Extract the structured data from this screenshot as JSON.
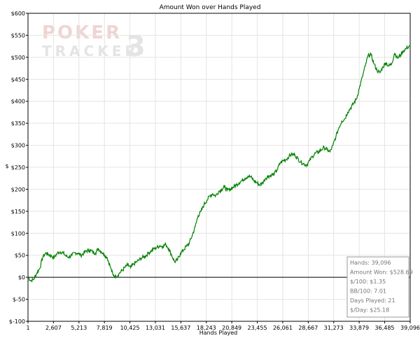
{
  "chart_data": {
    "type": "line",
    "title": "Amount Won over Hands Played",
    "xlabel": "Hands Played",
    "ylabel": "$",
    "xlim": [
      1,
      39096
    ],
    "ylim": [
      -100,
      600
    ],
    "x_ticks": [
      "1",
      "2,607",
      "5,213",
      "7,819",
      "10,425",
      "13,031",
      "15,637",
      "18,243",
      "20,849",
      "23,455",
      "26,061",
      "28,667",
      "31,273",
      "33,879",
      "36,485",
      "39,096"
    ],
    "y_ticks": [
      "$600",
      "$550",
      "$500",
      "$450",
      "$400",
      "$350",
      "$300",
      "$250",
      "$200",
      "$150",
      "$100",
      "$50",
      "$0",
      "$-50",
      "$-100"
    ],
    "grid": true,
    "line_color": "#008000",
    "series": [
      {
        "x": [
          1,
          300,
          600,
          900,
          1200,
          1500,
          1800,
          2100,
          2400,
          2700,
          3000,
          3300,
          3600,
          3900,
          4200,
          4500,
          4800,
          5100,
          5400,
          5700,
          6000,
          6300,
          6600,
          6900,
          7200,
          7500,
          7800,
          8100,
          8400,
          8700,
          9000,
          9300,
          9600,
          9900,
          10200,
          10500,
          10800,
          11100,
          11400,
          11700,
          12000,
          12300,
          12600,
          12900,
          13200,
          13500,
          13800,
          14100,
          14400,
          14700,
          15000,
          15300,
          15600,
          15900,
          16200,
          16500,
          16800,
          17100,
          17400,
          17700,
          18000,
          18300,
          18600,
          18900,
          19200,
          19500,
          19800,
          20100,
          20400,
          20700,
          21000,
          21300,
          21600,
          21900,
          22200,
          22500,
          22800,
          23100,
          23400,
          23700,
          24000,
          24300,
          24600,
          24900,
          25200,
          25500,
          25800,
          26100,
          26400,
          26700,
          27000,
          27300,
          27600,
          27900,
          28200,
          28500,
          28800,
          29100,
          29400,
          29700,
          30000,
          30300,
          30600,
          30900,
          31200,
          31500,
          31800,
          32100,
          32400,
          32700,
          33000,
          33300,
          33600,
          33900,
          34200,
          34500,
          34800,
          35100,
          35400,
          35700,
          36000,
          36300,
          36600,
          36900,
          37200,
          37500,
          37800,
          38100,
          38400,
          38700,
          39096
        ],
        "y": [
          0,
          -8,
          -4,
          10,
          20,
          45,
          55,
          52,
          48,
          45,
          55,
          58,
          55,
          48,
          46,
          50,
          56,
          55,
          50,
          55,
          60,
          62,
          58,
          55,
          65,
          58,
          52,
          45,
          25,
          5,
          2,
          8,
          15,
          22,
          28,
          22,
          30,
          35,
          40,
          45,
          48,
          55,
          60,
          65,
          68,
          72,
          70,
          75,
          65,
          50,
          35,
          40,
          55,
          62,
          70,
          78,
          95,
          115,
          140,
          150,
          165,
          175,
          185,
          190,
          185,
          195,
          200,
          205,
          198,
          200,
          205,
          210,
          215,
          220,
          225,
          230,
          228,
          220,
          215,
          210,
          215,
          225,
          230,
          232,
          235,
          245,
          260,
          265,
          268,
          275,
          280,
          278,
          270,
          262,
          258,
          255,
          265,
          275,
          282,
          285,
          290,
          295,
          290,
          285,
          300,
          320,
          340,
          355,
          360,
          375,
          385,
          395,
          405,
          430,
          455,
          480,
          505,
          505,
          485,
          470,
          465,
          478,
          488,
          480,
          485,
          510,
          498,
          505,
          515,
          520,
          528
        ]
      }
    ],
    "stats": [
      "Hands: 39,096",
      "Amount Won: $528.69",
      "$/100: $1.35",
      "BB/100: 7.01",
      "Days Played: 21",
      "$/Day: $25.18"
    ],
    "watermark": "POKER TRACKER 3"
  }
}
